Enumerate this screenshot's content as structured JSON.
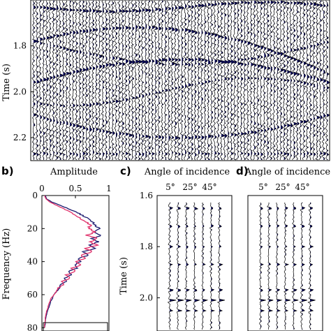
{
  "colors": {
    "ink": "#000000",
    "fill": "#0a0a5a",
    "blue_line": "#1a1a6e",
    "red_line": "#e0306a"
  },
  "chart_data": [
    {
      "id": "a",
      "type": "line",
      "panel_label": "",
      "title": "",
      "xlabel": "",
      "ylabel": "Time (s)",
      "yticks": [
        "1.8",
        "2.0",
        "2.2"
      ],
      "ytick_values": [
        1.8,
        2.0,
        2.2
      ],
      "ylim": [
        1.6,
        2.3
      ],
      "trace_count": 90,
      "description_style": "variable-area wiggle traces"
    },
    {
      "id": "b",
      "type": "line",
      "panel_label": "b)",
      "title": "Amplitude",
      "xlabel": "Amplitude",
      "ylabel": "Frequency (Hz)",
      "xticks": [
        "0",
        "0.5",
        "1"
      ],
      "xtick_values": [
        0,
        0.5,
        1
      ],
      "yticks": [
        "0",
        "20",
        "40",
        "60",
        "80"
      ],
      "ytick_values": [
        0,
        20,
        40,
        60,
        80
      ],
      "xlim": [
        0,
        1
      ],
      "ylim": [
        0,
        82
      ],
      "series": [
        {
          "color": "#1a1a6e",
          "freq": [
            0,
            2,
            4,
            6,
            8,
            10,
            12,
            14,
            16,
            18,
            20,
            22,
            24,
            26,
            28,
            30,
            32,
            34,
            36,
            38,
            40,
            42,
            44,
            46,
            48,
            50,
            52,
            54,
            56,
            58,
            60,
            62,
            64,
            66,
            68,
            70,
            72,
            74,
            76,
            78,
            80
          ],
          "values": [
            0.05,
            0.07,
            0.15,
            0.28,
            0.4,
            0.52,
            0.6,
            0.7,
            0.76,
            0.8,
            0.86,
            0.78,
            0.88,
            0.74,
            0.84,
            0.7,
            0.78,
            0.62,
            0.7,
            0.55,
            0.58,
            0.48,
            0.52,
            0.4,
            0.44,
            0.34,
            0.36,
            0.28,
            0.26,
            0.22,
            0.18,
            0.16,
            0.13,
            0.12,
            0.1,
            0.08,
            0.07,
            0.06,
            0.05,
            0.05,
            0.04
          ]
        },
        {
          "color": "#e0306a",
          "freq": [
            0,
            2,
            4,
            6,
            8,
            10,
            12,
            14,
            16,
            18,
            20,
            22,
            24,
            26,
            28,
            30,
            32,
            34,
            36,
            38,
            40,
            42,
            44,
            46,
            48,
            50,
            52,
            54,
            56,
            58,
            60,
            62,
            64,
            66,
            68,
            70,
            72,
            74,
            76,
            78,
            80
          ],
          "values": [
            0.04,
            0.06,
            0.12,
            0.22,
            0.32,
            0.42,
            0.5,
            0.58,
            0.66,
            0.72,
            0.7,
            0.8,
            0.66,
            0.84,
            0.7,
            0.82,
            0.64,
            0.76,
            0.58,
            0.66,
            0.5,
            0.58,
            0.44,
            0.5,
            0.36,
            0.42,
            0.3,
            0.32,
            0.24,
            0.22,
            0.18,
            0.14,
            0.12,
            0.1,
            0.09,
            0.07,
            0.06,
            0.05,
            0.05,
            0.04,
            0.04
          ]
        }
      ]
    },
    {
      "id": "c",
      "type": "line",
      "panel_label": "c)",
      "title": "Angle of incidence",
      "xticks": [
        "5°",
        "25°",
        "45°"
      ],
      "ylabel": "Time (s)",
      "yticks": [
        "1.6",
        "1.8",
        "2.0"
      ],
      "ytick_values": [
        1.6,
        1.8,
        2.0
      ],
      "ylim": [
        1.6,
        2.13
      ],
      "trace_count": 7
    },
    {
      "id": "d",
      "type": "line",
      "panel_label": "d)",
      "title": "Angle of incidence",
      "xticks": [
        "5°",
        "25°",
        "45°"
      ],
      "trace_count": 7
    }
  ]
}
